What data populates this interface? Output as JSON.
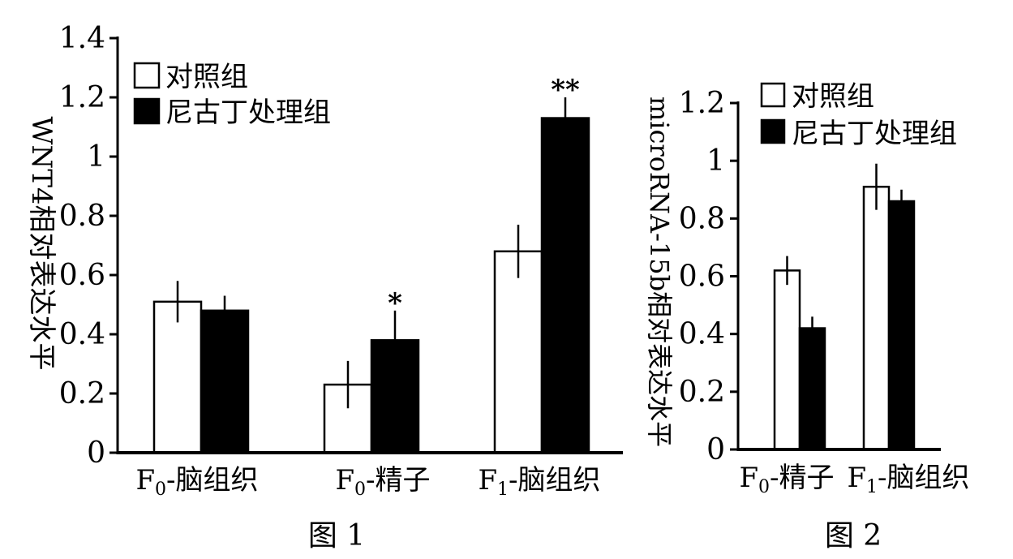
{
  "chart_data": [
    {
      "type": "bar",
      "caption": "图 1",
      "ylabel": "WNT4相对表达水平",
      "ylim": [
        0,
        1.4
      ],
      "yticks": [
        "0",
        "0.2",
        "0.4",
        "0.6",
        "0.8",
        "1",
        "1.2",
        "1.4"
      ],
      "categories": [
        {
          "main": "F",
          "sub": "0",
          "rest": "-脑组织"
        },
        {
          "main": "F",
          "sub": "0",
          "rest": "-精子"
        },
        {
          "main": "F",
          "sub": "1",
          "rest": "-脑组织"
        }
      ],
      "legend": [
        "对照组",
        "尼古丁处理组"
      ],
      "series": [
        {
          "name": "对照组",
          "values": [
            0.51,
            0.23,
            0.68
          ],
          "errors": [
            0.07,
            0.08,
            0.09
          ],
          "color": "#ffffff"
        },
        {
          "name": "尼古丁处理组",
          "values": [
            0.48,
            0.38,
            1.13
          ],
          "errors": [
            0.05,
            0.1,
            0.07
          ],
          "color": "#000000"
        }
      ],
      "significance": [
        "",
        "*",
        "**"
      ]
    },
    {
      "type": "bar",
      "caption": "图 2",
      "ylabel": "microRNA-15b相对表达水平",
      "ylim": [
        0,
        1.2
      ],
      "yticks": [
        "0",
        "0.2",
        "0.4",
        "0.6",
        "0.8",
        "1",
        "1.2"
      ],
      "categories": [
        {
          "main": "F",
          "sub": "0",
          "rest": "-精子"
        },
        {
          "main": "F",
          "sub": "1",
          "rest": "-脑组织"
        }
      ],
      "legend": [
        "对照组",
        "尼古丁处理组"
      ],
      "series": [
        {
          "name": "对照组",
          "values": [
            0.62,
            0.91
          ],
          "errors": [
            0.05,
            0.08
          ],
          "color": "#ffffff"
        },
        {
          "name": "尼古丁处理组",
          "values": [
            0.42,
            0.86
          ],
          "errors": [
            0.04,
            0.04
          ],
          "color": "#000000"
        }
      ],
      "significance": [
        "",
        ""
      ]
    }
  ]
}
